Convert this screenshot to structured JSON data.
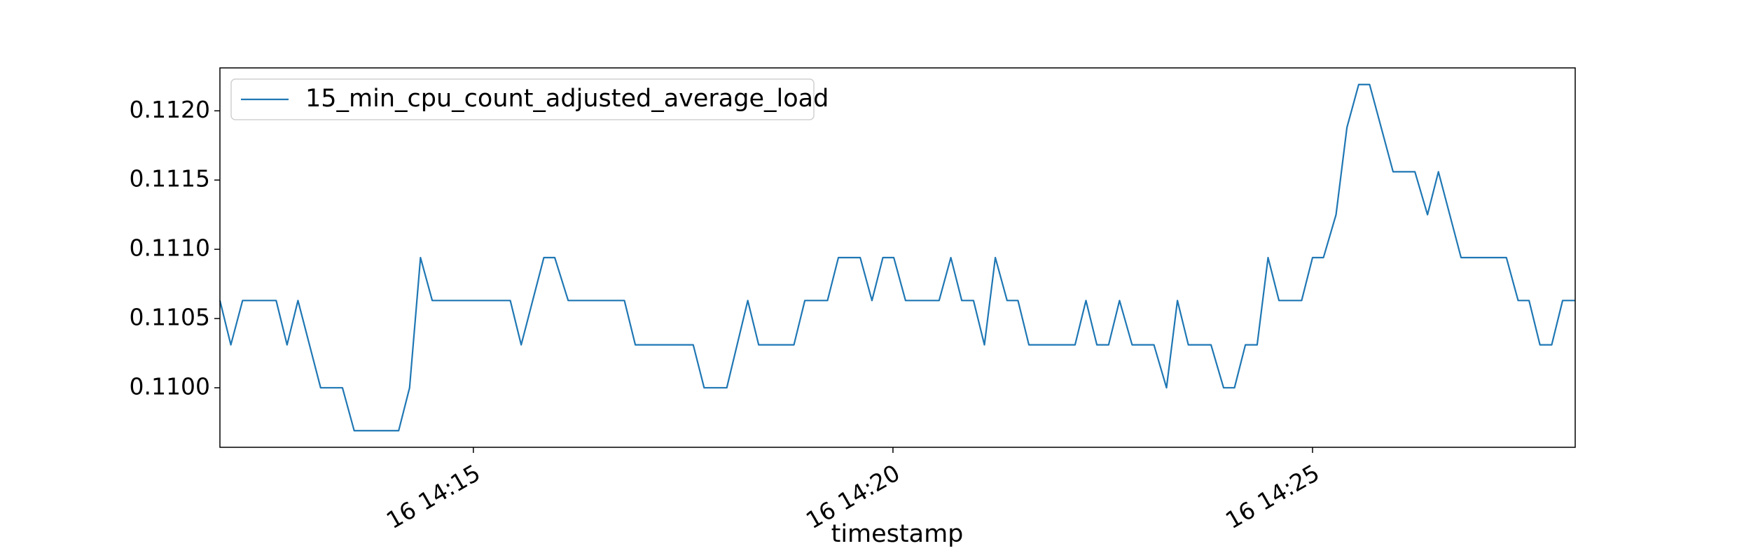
{
  "chart_data": {
    "type": "line",
    "x_label": "timestamp",
    "x": [
      11.98,
      12.11,
      12.25,
      12.65,
      12.78,
      12.91,
      13.18,
      13.44,
      13.58,
      14.11,
      14.24,
      14.37,
      14.51,
      15.44,
      15.57,
      15.84,
      15.97,
      16.13,
      16.8,
      16.93,
      17.62,
      17.75,
      18.02,
      18.27,
      18.4,
      18.82,
      18.95,
      19.22,
      19.35,
      19.61,
      19.75,
      19.88,
      20.01,
      20.15,
      20.55,
      20.69,
      20.82,
      20.96,
      21.09,
      21.22,
      21.36,
      21.49,
      21.62,
      22.17,
      22.3,
      22.43,
      22.57,
      22.7,
      22.85,
      23.11,
      23.26,
      23.39,
      23.52,
      23.79,
      23.94,
      24.07,
      24.2,
      24.34,
      24.47,
      24.6,
      24.87,
      25.0,
      25.13,
      25.28,
      25.41,
      25.55,
      25.68,
      25.96,
      26.22,
      26.37,
      26.5,
      26.77,
      27.31,
      27.45,
      27.58,
      27.71,
      27.85,
      27.98,
      28.13
    ],
    "series": [
      {
        "name": "15_min_cpu_count_adjusted_average_load",
        "color": "#1f77b4",
        "values": [
          0.11063,
          0.11031,
          0.11063,
          0.11063,
          0.11031,
          0.11063,
          0.11,
          0.11,
          0.10969,
          0.10969,
          0.11,
          0.11094,
          0.11063,
          0.11063,
          0.11031,
          0.11094,
          0.11094,
          0.11063,
          0.11063,
          0.11031,
          0.11031,
          0.11,
          0.11,
          0.11063,
          0.11031,
          0.11031,
          0.11063,
          0.11063,
          0.11094,
          0.11094,
          0.11063,
          0.11094,
          0.11094,
          0.11063,
          0.11063,
          0.11094,
          0.11063,
          0.11063,
          0.11031,
          0.11094,
          0.11063,
          0.11063,
          0.11031,
          0.11031,
          0.11063,
          0.11031,
          0.11031,
          0.11063,
          0.11031,
          0.11031,
          0.11,
          0.11063,
          0.11031,
          0.11031,
          0.11,
          0.11,
          0.11031,
          0.11031,
          0.11094,
          0.11063,
          0.11063,
          0.11094,
          0.11094,
          0.11125,
          0.11188,
          0.11219,
          0.11219,
          0.11156,
          0.11156,
          0.11125,
          0.11156,
          0.11094,
          0.11094,
          0.11063,
          0.11063,
          0.11031,
          0.11031,
          0.11063,
          0.11063
        ]
      }
    ],
    "xlim": [
      11.98,
      28.13
    ],
    "xticks": [
      {
        "value": 15,
        "label": "16 14:15"
      },
      {
        "value": 20,
        "label": "16 14:20"
      },
      {
        "value": 25,
        "label": "16 14:25"
      }
    ],
    "ylim": [
      0.10957,
      0.11231
    ],
    "yticks": [
      {
        "value": 0.11,
        "label": "0.1100"
      },
      {
        "value": 0.1105,
        "label": "0.1105"
      },
      {
        "value": 0.111,
        "label": "0.1110"
      },
      {
        "value": 0.1115,
        "label": "0.1115"
      },
      {
        "value": 0.112,
        "label": "0.1120"
      }
    ],
    "legend": "upper left"
  }
}
